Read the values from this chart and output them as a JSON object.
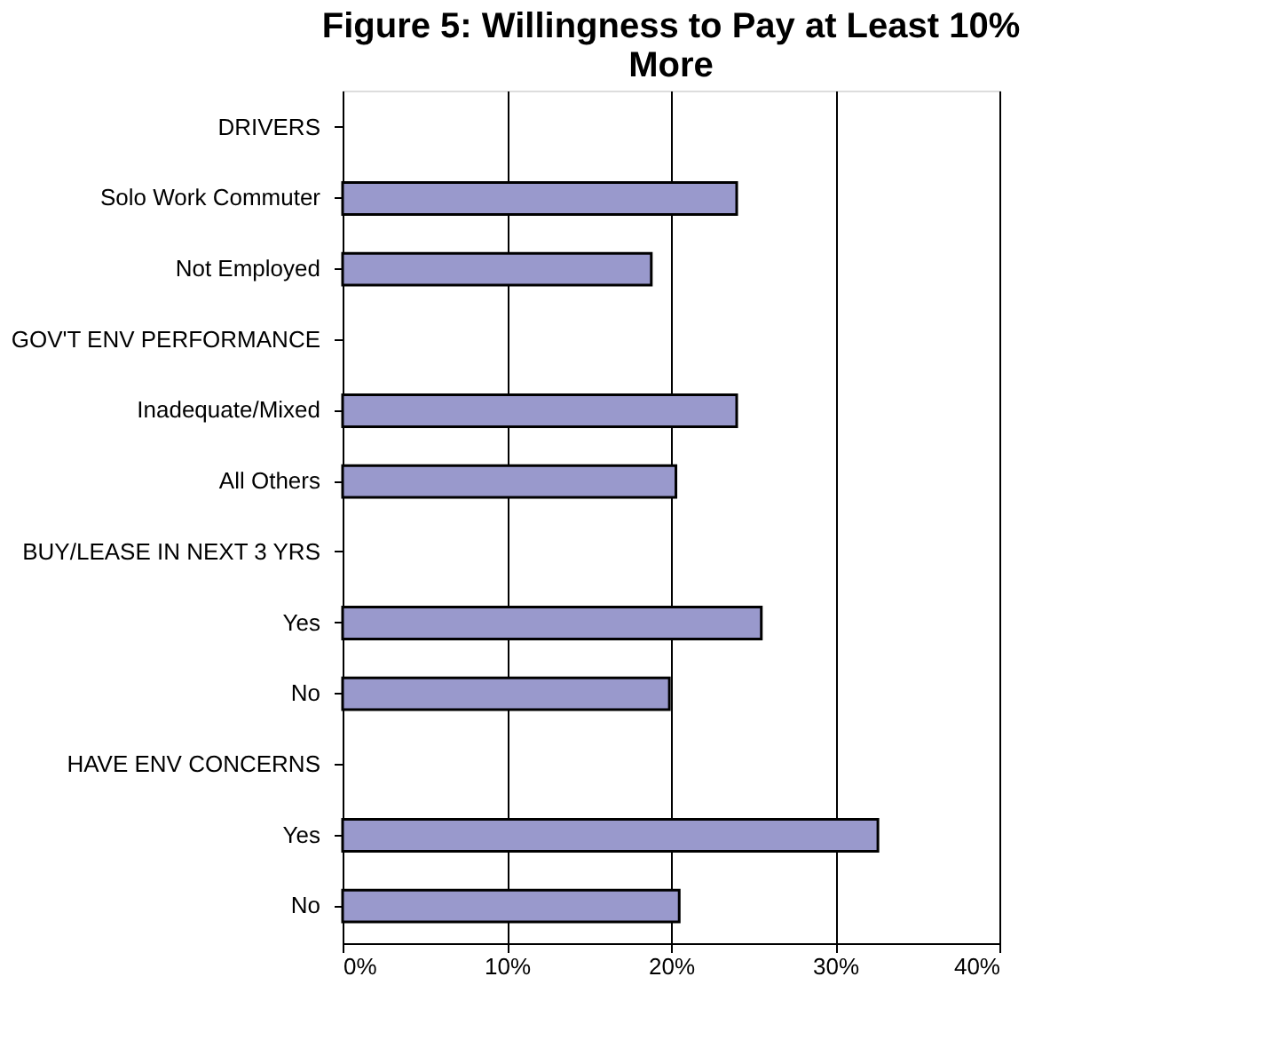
{
  "chart_data": {
    "type": "bar",
    "orientation": "horizontal",
    "title": "Figure 5: Willingness to Pay at Least 10% More",
    "categories": [
      "DRIVERS",
      "Solo Work Commuter",
      "Not Employed",
      "GOV'T ENV PERFORMANCE",
      "Inadequate/Mixed",
      "All Others",
      "BUY/LEASE IN NEXT 3 YRS",
      "Yes",
      "No",
      "HAVE ENV CONCERNS",
      "Yes",
      "No"
    ],
    "values": [
      null,
      24.0,
      18.8,
      null,
      24.0,
      20.3,
      null,
      25.5,
      19.9,
      null,
      32.6,
      20.5
    ],
    "color": "#9999cc",
    "xlim": [
      0,
      40
    ],
    "xticks": [
      {
        "value": 0,
        "label": "0%"
      },
      {
        "value": 10,
        "label": "10%"
      },
      {
        "value": 20,
        "label": "20%"
      },
      {
        "value": 30,
        "label": "30%"
      },
      {
        "value": 40,
        "label": "40%"
      }
    ],
    "grid": "x"
  }
}
